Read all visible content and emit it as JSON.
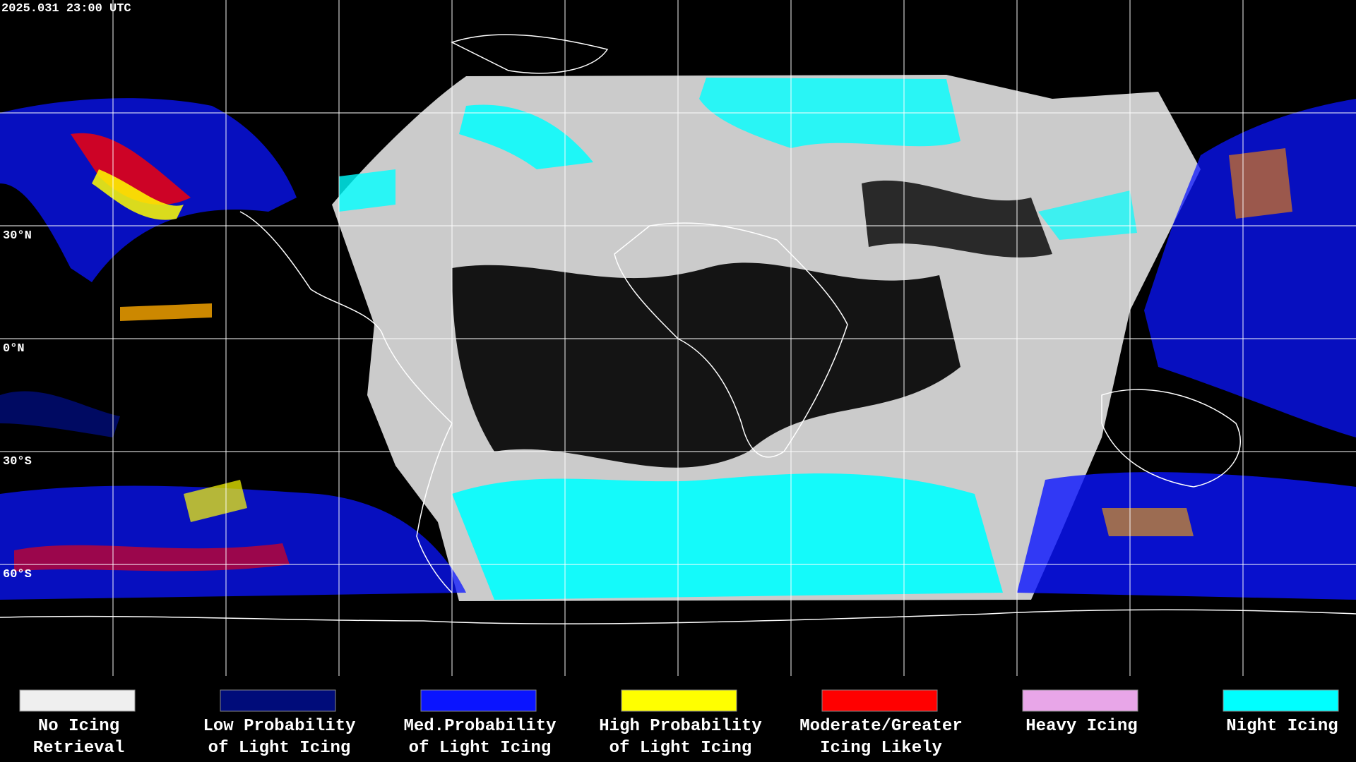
{
  "header": {
    "timestamp": "2025.031 23:00 UTC"
  },
  "map": {
    "latitude_labels": [
      "30°N",
      "0°N",
      "30°S",
      "60°S"
    ]
  },
  "legend": [
    {
      "lines": [
        "No Icing",
        "Retrieval"
      ],
      "color": "#efefef"
    },
    {
      "lines": [
        "Low Probability",
        "of Light Icing"
      ],
      "color": "#000c7a"
    },
    {
      "lines": [
        "Med.Probability",
        "of Light Icing"
      ],
      "color": "#0a14ff"
    },
    {
      "lines": [
        "High Probability",
        "of Light Icing"
      ],
      "color": "#ffff00"
    },
    {
      "lines": [
        "Moderate/Greater",
        "Icing Likely"
      ],
      "color": "#ff0000"
    },
    {
      "lines": [
        "Heavy Icing"
      ],
      "color": "#e8a6e8"
    },
    {
      "lines": [
        "Night Icing"
      ],
      "color": "#00ffff"
    }
  ]
}
